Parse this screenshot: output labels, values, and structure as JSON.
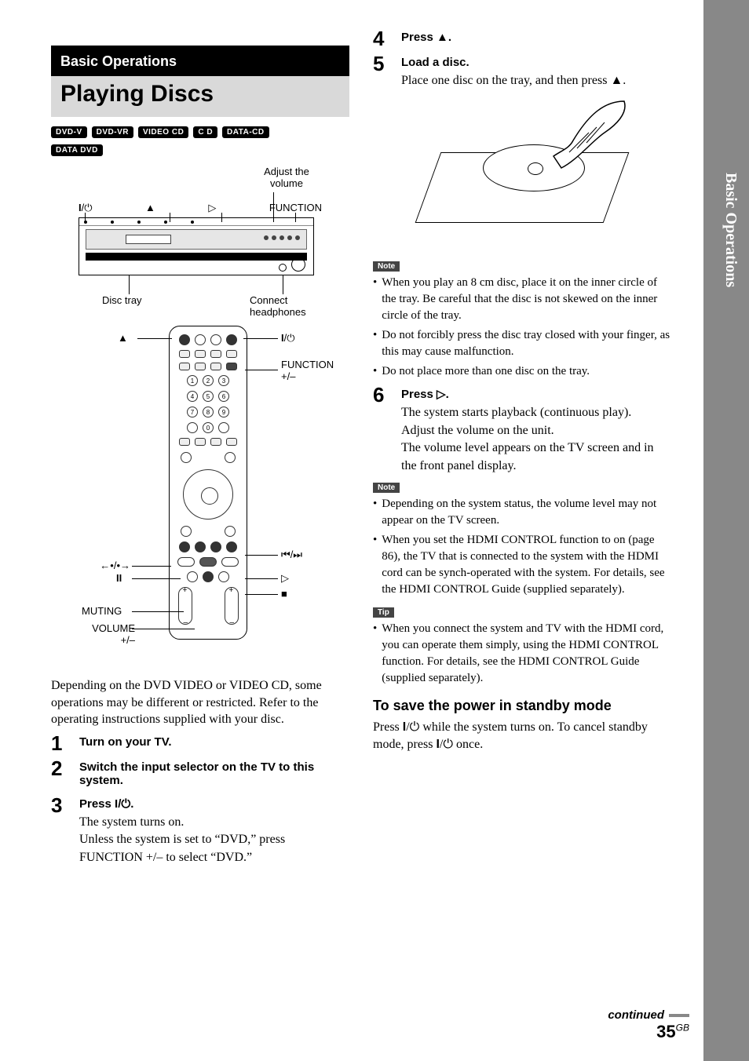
{
  "sidebar": {
    "label": "Basic Operations"
  },
  "section_tab": "Basic Operations",
  "title": "Playing Discs",
  "badges": [
    "DVD-V",
    "DVD-VR",
    "VIDEO CD",
    "C D",
    "DATA-CD",
    "DATA DVD"
  ],
  "player_fig": {
    "adjust": "Adjust the volume",
    "power": "\"/1",
    "eject": "Z",
    "play": "H",
    "func": "FUNCTION",
    "disc_tray": "Disc tray",
    "headphones": "Connect headphones"
  },
  "remote_fig": {
    "eject": "Z",
    "power": "\"/1",
    "func": "FUNCTION +/–",
    "skip": "./>",
    "play": "H",
    "stop": "x",
    "replay": "•/•",
    "pause": "X",
    "muting": "MUTING",
    "volume": "VOLUME +/–"
  },
  "intro": "Depending on the DVD VIDEO or VIDEO CD, some operations may be different or restricted. Refer to the operating instructions supplied with your disc.",
  "steps_left": [
    {
      "n": "1",
      "head": "Turn on your TV."
    },
    {
      "n": "2",
      "head": "Switch the input selector on the TV to this system."
    },
    {
      "n": "3",
      "head": "Press \"/1.",
      "body": "The system turns on.\nUnless the system is set to “DVD,” press FUNCTION +/– to select “DVD.”"
    }
  ],
  "steps_right_a": [
    {
      "n": "4",
      "head": "Press Z."
    },
    {
      "n": "5",
      "head": "Load a disc.",
      "body": "Place one disc on the tray, and then press Z."
    }
  ],
  "note1_label": "Note",
  "note1": [
    "When you play an 8 cm disc, place it on the inner circle of the tray. Be careful that the disc is not skewed on the inner circle of the tray.",
    "Do not forcibly press the disc tray closed with your finger, as this may cause malfunction.",
    "Do not place more than one disc on the tray."
  ],
  "steps_right_b": [
    {
      "n": "6",
      "head": "Press H.",
      "body": "The system starts playback (continuous play).\nAdjust the volume on the unit.\nThe volume level appears on the TV screen and in the front panel display."
    }
  ],
  "note2_label": "Note",
  "note2": [
    "Depending on the system status, the volume level may not appear on the TV screen.",
    "When you set the HDMI CONTROL function to on (page 86), the TV that is connected to the system with the HDMI cord can be synch-operated with the system. For details, see the HDMI CONTROL Guide (supplied separately)."
  ],
  "tip_label": "Tip",
  "tip": [
    "When you connect the system and TV with the HDMI cord, you can operate them simply, using the HDMI CONTROL function. For details, see the HDMI CONTROL Guide (supplied separately)."
  ],
  "standby": {
    "heading": "To save the power in standby mode",
    "body": "Press \"/1 while the system turns on. To cancel standby mode, press \"/1 once."
  },
  "footer": {
    "continued": "continued",
    "page": "35",
    "suffix": "GB"
  }
}
